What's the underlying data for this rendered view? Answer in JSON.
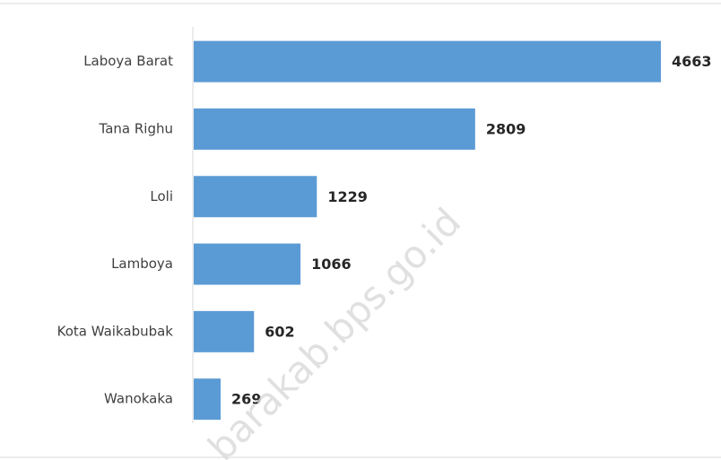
{
  "chart_data": {
    "type": "bar",
    "orientation": "horizontal",
    "categories": [
      "Laboya Barat",
      "Tana Righu",
      "Loli",
      "Lamboya",
      "Kota Waikabubak",
      "Wanokaka"
    ],
    "values": [
      4663,
      2809,
      1229,
      1066,
      602,
      269
    ],
    "color": "#5b9bd5",
    "watermark": "barakab.bps.go.id"
  }
}
